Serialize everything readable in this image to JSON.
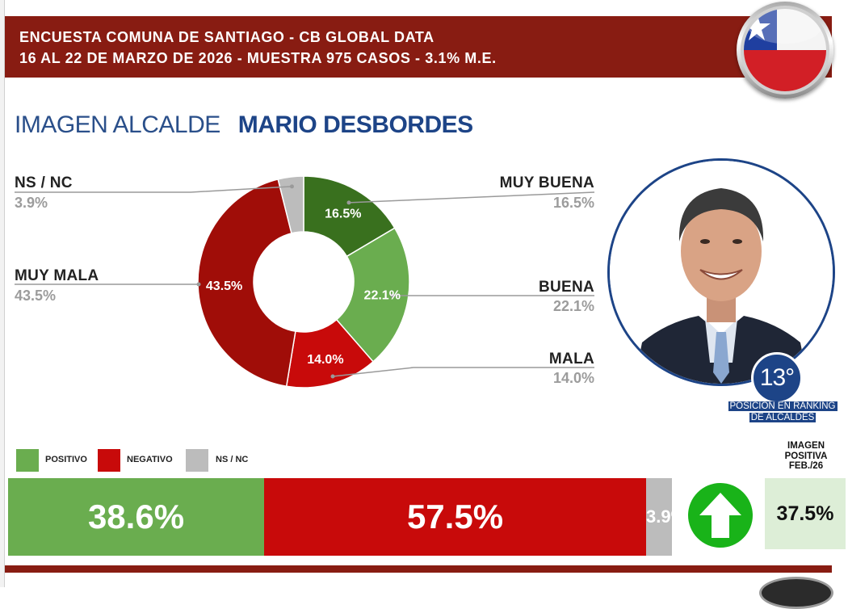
{
  "header": {
    "line1": "ENCUESTA COMUNA DE SANTIAGO - CB GLOBAL DATA",
    "line2": "16 AL 22 DE MARZO DE 2026 - MUESTRA 975 CASOS - 3.1% M.E."
  },
  "title": {
    "prefix": "IMAGEN ALCALDE",
    "name": "MARIO DESBORDES"
  },
  "ranking": {
    "position": "13°",
    "caption_line1": "POSICIÓN EN RANKING",
    "caption_line2": "DE ALCALDES"
  },
  "legend": {
    "positive": "POSITIVO",
    "negative": "NEGATIVO",
    "nsnc": "NS / NC"
  },
  "previous": {
    "label_line1": "IMAGEN",
    "label_line2": "POSITIVA",
    "label_line3": "FEB./26",
    "value": "37.5%"
  },
  "colors": {
    "header": "#881c12",
    "muy_buena": "#39701e",
    "buena": "#6aad4f",
    "mala": "#c80a0a",
    "muy_mala": "#a00d08",
    "nsnc": "#bcbcbc",
    "positivo": "#6aad4f",
    "negativo": "#c80a0a",
    "title_blue": "#1d4487",
    "arrow": "#19b319"
  },
  "icons": {
    "flag": "chile-flag-icon",
    "arrow": "up-arrow-icon",
    "photo": "mayor-portrait"
  },
  "chart_data": [
    {
      "type": "pie",
      "donut": true,
      "categories": [
        "MUY BUENA",
        "BUENA",
        "MALA",
        "MUY MALA",
        "NS / NC"
      ],
      "values": [
        16.5,
        22.1,
        14.0,
        43.5,
        3.9
      ],
      "value_labels": [
        "16.5%",
        "22.1%",
        "14.0%",
        "43.5%",
        "3.9%"
      ],
      "legend_values": [
        "16.5%",
        "22.1%",
        "14.0%",
        "43.5%",
        "3.9%"
      ]
    },
    {
      "type": "bar",
      "stacked": true,
      "orientation": "horizontal",
      "categories": [
        "POSITIVO",
        "NEGATIVO",
        "NS / NC"
      ],
      "values": [
        38.6,
        57.5,
        3.9
      ],
      "value_labels": [
        "38.6%",
        "57.5%",
        "3.9%"
      ]
    }
  ]
}
